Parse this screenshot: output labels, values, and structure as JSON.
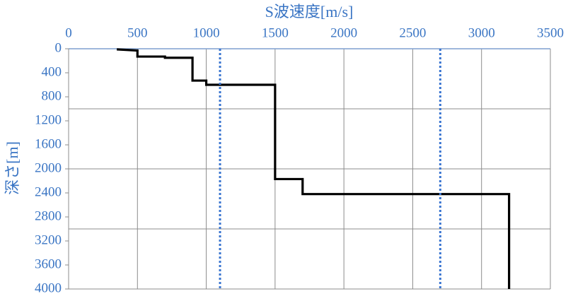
{
  "chart_data": {
    "type": "line",
    "title": "S波速度[m/s]",
    "y_label": "深さ[m]",
    "y_inverted": true,
    "x_axis_position": "top",
    "series": [
      {
        "color": "#000000",
        "dashed": false,
        "x": [
          350,
          500,
          500,
          700,
          700,
          900,
          900,
          1000,
          1000,
          1500,
          1500,
          1700,
          1700,
          3200,
          3200
        ],
        "values": [
          10,
          30,
          130,
          130,
          150,
          150,
          530,
          530,
          600,
          600,
          2170,
          2170,
          2420,
          2420,
          4000
        ]
      },
      {
        "color": "#3a75d0",
        "dashed": true,
        "x": [
          1100,
          1100
        ],
        "values": [
          0,
          4000
        ]
      },
      {
        "color": "#3a75d0",
        "dashed": true,
        "x": [
          2700,
          2700
        ],
        "values": [
          0,
          4000
        ]
      }
    ],
    "xlim": [
      0,
      3500
    ],
    "xticks": [
      0,
      500,
      1000,
      1500,
      2000,
      2500,
      3000,
      3500
    ],
    "ylim": [
      0,
      4000
    ],
    "yticks": [
      0,
      400,
      800,
      1200,
      1600,
      2000,
      2400,
      2800,
      3200,
      3600,
      4000
    ],
    "ygrid": [
      1000,
      2000,
      3000,
      4000
    ],
    "grid": true
  }
}
